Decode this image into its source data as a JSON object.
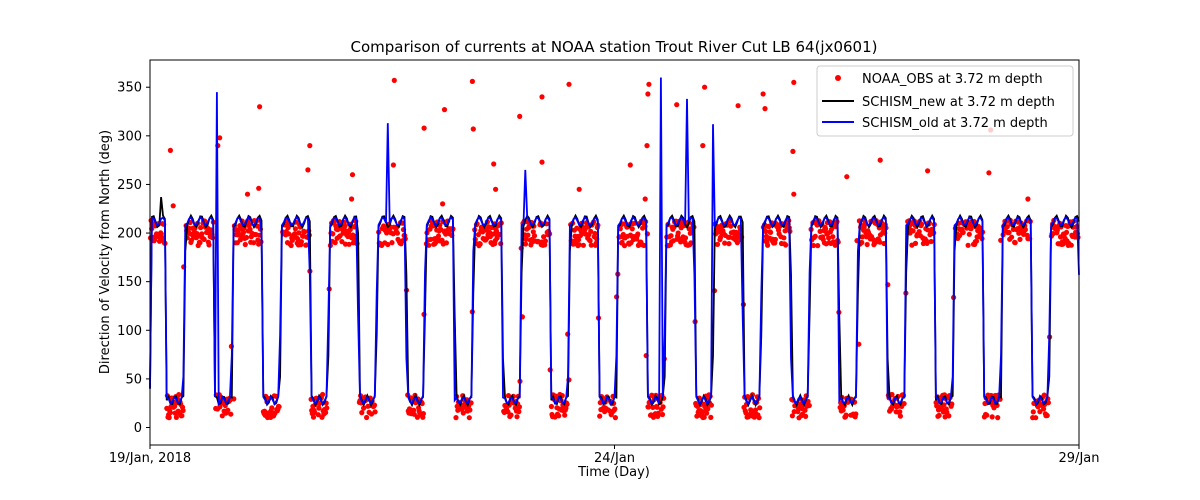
{
  "chart_data": {
    "type": "line",
    "title": "Comparison of currents at NOAA station Trout River Cut LB 64(jx0601)",
    "xlabel": "Time (Day)",
    "ylabel": "Direction of Velocity from North (deg)",
    "xlim": [
      0,
      10
    ],
    "ylim": [
      -18,
      378
    ],
    "x_ticks": [
      {
        "value": 0,
        "label": "19/Jan, 2018"
      },
      {
        "value": 5,
        "label": "24/Jan"
      },
      {
        "value": 10,
        "label": "29/Jan"
      }
    ],
    "y_ticks": [
      0,
      50,
      100,
      150,
      200,
      250,
      300,
      350
    ],
    "grid": false,
    "legend_position": "top-right",
    "tidal_period_days": 0.5175,
    "series": [
      {
        "name": "NOAA_OBS at 3.72 m depth",
        "style": "points",
        "color": "#ff0000",
        "flood_direction_deg": 200,
        "ebb_direction_deg": 22,
        "outliers": [
          {
            "x": 0.22,
            "y": 285
          },
          {
            "x": 0.25,
            "y": 228
          },
          {
            "x": 0.75,
            "y": 298
          },
          {
            "x": 0.73,
            "y": 290
          },
          {
            "x": 1.05,
            "y": 240
          },
          {
            "x": 1.18,
            "y": 330
          },
          {
            "x": 1.17,
            "y": 246
          },
          {
            "x": 1.72,
            "y": 290
          },
          {
            "x": 1.7,
            "y": 265
          },
          {
            "x": 2.18,
            "y": 260
          },
          {
            "x": 2.17,
            "y": 235
          },
          {
            "x": 2.63,
            "y": 357
          },
          {
            "x": 2.62,
            "y": 270
          },
          {
            "x": 2.95,
            "y": 308
          },
          {
            "x": 3.17,
            "y": 327
          },
          {
            "x": 3.15,
            "y": 230
          },
          {
            "x": 3.47,
            "y": 356
          },
          {
            "x": 3.48,
            "y": 307
          },
          {
            "x": 3.7,
            "y": 271
          },
          {
            "x": 3.72,
            "y": 245
          },
          {
            "x": 3.98,
            "y": 320
          },
          {
            "x": 4.22,
            "y": 340
          },
          {
            "x": 4.22,
            "y": 273
          },
          {
            "x": 4.51,
            "y": 353
          },
          {
            "x": 4.62,
            "y": 245
          },
          {
            "x": 5.17,
            "y": 270
          },
          {
            "x": 5.37,
            "y": 353
          },
          {
            "x": 5.36,
            "y": 343
          },
          {
            "x": 5.35,
            "y": 290
          },
          {
            "x": 5.33,
            "y": 235
          },
          {
            "x": 5.67,
            "y": 332
          },
          {
            "x": 5.97,
            "y": 350
          },
          {
            "x": 5.95,
            "y": 290
          },
          {
            "x": 6.33,
            "y": 331
          },
          {
            "x": 6.6,
            "y": 343
          },
          {
            "x": 6.62,
            "y": 328
          },
          {
            "x": 6.93,
            "y": 355
          },
          {
            "x": 6.92,
            "y": 284
          },
          {
            "x": 6.93,
            "y": 240
          },
          {
            "x": 7.5,
            "y": 258
          },
          {
            "x": 7.86,
            "y": 275
          },
          {
            "x": 8.37,
            "y": 264
          },
          {
            "x": 9.03,
            "y": 262
          },
          {
            "x": 9.05,
            "y": 306
          },
          {
            "x": 9.45,
            "y": 235
          }
        ]
      },
      {
        "name": "SCHISM_new at 3.72 m depth",
        "style": "line",
        "color": "#000000",
        "peaks": [
          {
            "x": 0.12,
            "y": 237
          }
        ]
      },
      {
        "name": "SCHISM_old at 3.72 m depth",
        "style": "line",
        "color": "#0000ff",
        "peaks": [
          {
            "x": 0.72,
            "y": 345
          },
          {
            "x": 2.57,
            "y": 313
          },
          {
            "x": 4.05,
            "y": 265
          },
          {
            "x": 5.5,
            "y": 360
          },
          {
            "x": 5.78,
            "y": 338
          },
          {
            "x": 6.06,
            "y": 312
          }
        ]
      }
    ]
  }
}
